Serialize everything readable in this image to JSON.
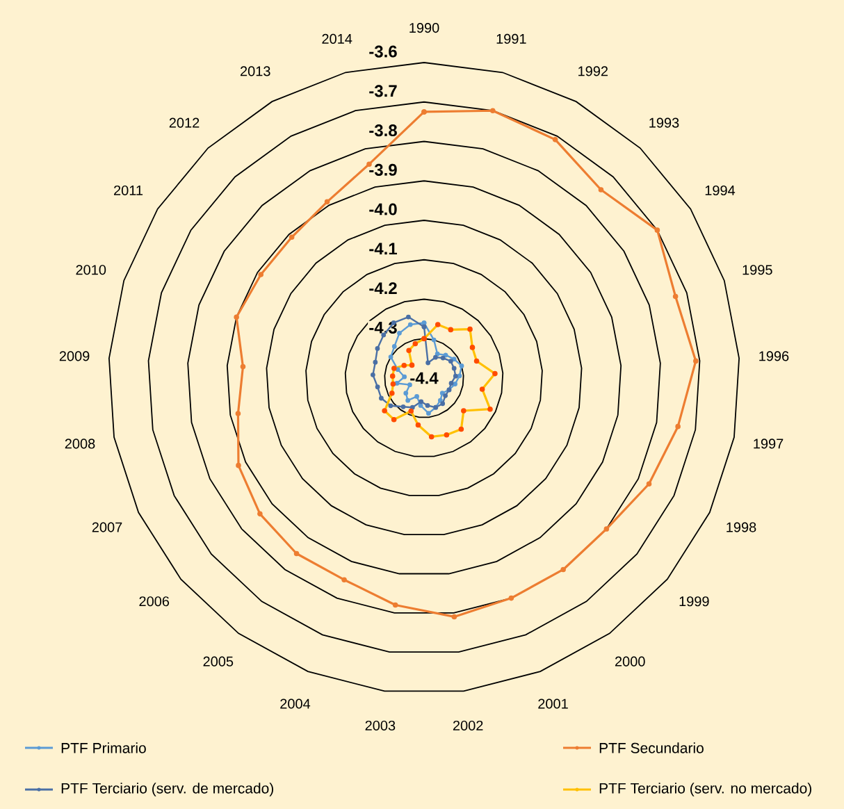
{
  "chart_data": {
    "type": "radar",
    "categories": [
      "1990",
      "1991",
      "1992",
      "1993",
      "1994",
      "1995",
      "1996",
      "1997",
      "1998",
      "1999",
      "2000",
      "2001",
      "2002",
      "2003",
      "2004",
      "2005",
      "2006",
      "2007",
      "2008",
      "2009",
      "2010",
      "2011",
      "2012",
      "2013",
      "2014"
    ],
    "series": [
      {
        "name": "PTF Primario",
        "color": "#5b9bd5",
        "values": [
          -4.26,
          -4.3,
          -4.33,
          -4.32,
          -4.31,
          -4.3,
          -4.31,
          -4.32,
          -4.33,
          -4.34,
          -4.33,
          -4.32,
          -4.31,
          -4.33,
          -4.35,
          -4.33,
          -4.34,
          -4.36,
          -4.33,
          -4.35,
          -4.33,
          -4.3,
          -4.29,
          -4.27,
          -4.26
        ]
      },
      {
        "name": "PTF Secundario",
        "color": "#ed7d31",
        "values": [
          -3.725,
          -3.7,
          -3.71,
          -3.745,
          -3.7,
          -3.73,
          -3.71,
          -3.745,
          -3.77,
          -3.8,
          -3.8,
          -3.8,
          -3.79,
          -3.82,
          -3.85,
          -3.85,
          -3.86,
          -3.88,
          -3.92,
          -3.94,
          -3.9,
          -3.91,
          -3.91,
          -3.89,
          -3.84
        ]
      },
      {
        "name": "PTF Terciario (serv. de mercado)",
        "color": "#4a6fa5",
        "values": [
          -4.27,
          -4.36,
          -4.34,
          -4.33,
          -4.32,
          -4.32,
          -4.32,
          -4.33,
          -4.33,
          -4.33,
          -4.32,
          -4.32,
          -4.33,
          -4.34,
          -4.32,
          -4.31,
          -4.29,
          -4.28,
          -4.28,
          -4.27,
          -4.27,
          -4.26,
          -4.25,
          -4.24,
          -4.24
        ]
      },
      {
        "name": "PTF Terciario (serv. no mercado)",
        "color": "#ffc000",
        "values": [
          -4.3,
          -4.26,
          -4.26,
          -4.23,
          -4.255,
          -4.26,
          -4.22,
          -4.25,
          -4.215,
          -4.27,
          -4.24,
          -4.245,
          -4.25,
          -4.28,
          -4.31,
          -4.27,
          -4.27,
          -4.31,
          -4.32,
          -4.32,
          -4.32,
          -4.34,
          -4.355,
          -4.32,
          -4.31
        ]
      }
    ],
    "ylim": [
      -4.4,
      -3.6
    ],
    "yticks": [
      {
        "value": -4.4,
        "label": "-4.4"
      },
      -4.3,
      -4.2,
      -4.1,
      {
        "value": -4,
        "label": "-4.0"
      },
      -3.9,
      -3.8,
      -3.7,
      -3.6
    ],
    "grid": true,
    "legend": "bottom",
    "marker": "circle",
    "line_style": "solid"
  }
}
